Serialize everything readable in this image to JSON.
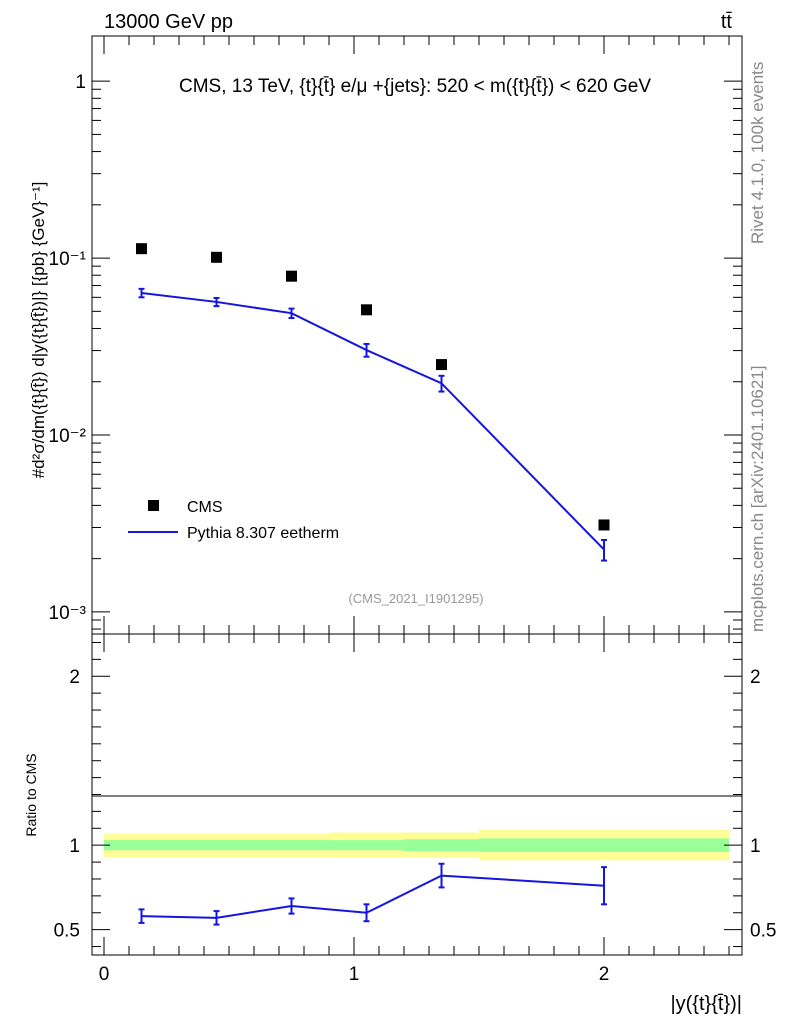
{
  "header": {
    "energy_label": "13000 GeV pp",
    "process_label": "tt̄"
  },
  "side": {
    "rivet_label": "Rivet 4.1.0,  100k events",
    "mcplots_label": "mcplots.cern.ch [arXiv:2401.10621]"
  },
  "chart_data": {
    "type": "line",
    "title": "CMS, 13 TeV, {t}{t̄} e/μ +{jets}: 520 < m({t}{t̄}) < 620 GeV",
    "analysis_id": "(CMS_2021_I1901295)",
    "xlabel": "|y({t}{t̄})|",
    "ylabel_main": "#d²σ/dm({t}{t̄}) d|y({t}{t̄})|} [{pb} {GeV}⁻¹]",
    "ylabel_ratio": "Ratio to CMS",
    "xlim": [
      0,
      2.5
    ],
    "ylim_main": [
      0.00075,
      1.8
    ],
    "ylim_ratio": [
      0.35,
      2.25
    ],
    "x_ticks": [
      "0",
      "1",
      "2"
    ],
    "y_ticks_main": [
      "10⁻³",
      "10⁻²",
      "10⁻¹",
      "1"
    ],
    "y_ticks_ratio": [
      "0.5",
      "1",
      "2"
    ],
    "legend": {
      "position": "lower-left",
      "entries": [
        "CMS",
        "Pythia 8.307 eetherm"
      ]
    },
    "series": [
      {
        "name": "CMS",
        "style": "markers",
        "x": [
          0.15,
          0.45,
          0.75,
          1.05,
          1.35,
          2.0
        ],
        "values": [
          0.113,
          0.101,
          0.079,
          0.051,
          0.025,
          0.0031
        ],
        "bin_edges": [
          0.0,
          0.3,
          0.6,
          0.9,
          1.2,
          1.5,
          2.5
        ],
        "stat_rel": [
          0.03,
          0.03,
          0.03,
          0.03,
          0.035,
          0.04
        ],
        "total_rel": [
          0.07,
          0.07,
          0.07,
          0.075,
          0.075,
          0.09
        ]
      },
      {
        "name": "Pythia 8.307 eetherm",
        "style": "line",
        "x": [
          0.15,
          0.45,
          0.75,
          1.05,
          1.35,
          2.0
        ],
        "values": [
          0.0635,
          0.0565,
          0.0488,
          0.0302,
          0.0196,
          0.00225
        ],
        "errors": [
          0.0035,
          0.003,
          0.003,
          0.0025,
          0.002,
          0.0003
        ],
        "ratio": [
          0.58,
          0.57,
          0.64,
          0.6,
          0.82,
          0.76
        ],
        "ratio_errors": [
          0.04,
          0.04,
          0.045,
          0.05,
          0.07,
          0.11
        ]
      }
    ],
    "colors": {
      "data": "#000000",
      "mc": "#1515e0",
      "band_total": "#fefe99",
      "band_stat": "#99ff99",
      "axis": "#000000",
      "muted": "#999999"
    }
  }
}
